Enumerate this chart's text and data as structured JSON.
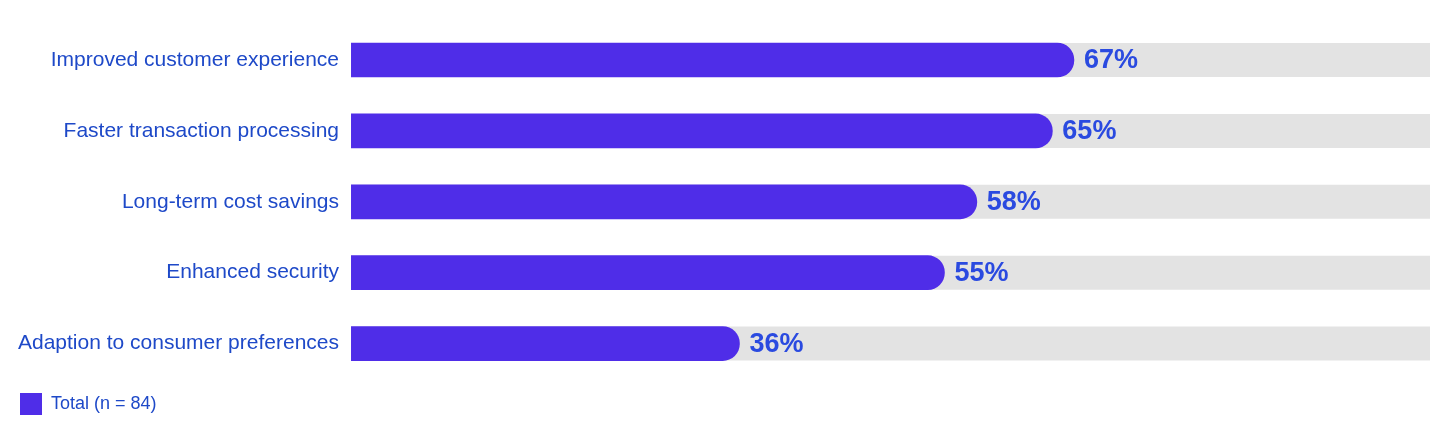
{
  "chart_data": {
    "type": "bar",
    "orientation": "horizontal",
    "categories": [
      "Improved customer experience",
      "Faster transaction processing",
      "Long-term cost savings",
      "Enhanced security",
      "Adaption to consumer preferences"
    ],
    "series": [
      {
        "name": "Total (n = 84)",
        "color": "#4f2de8",
        "values": [
          67,
          65,
          58,
          55,
          36
        ],
        "value_labels": [
          "67%",
          "65%",
          "58%",
          "55%",
          "36%"
        ]
      }
    ],
    "xlim": [
      0,
      100
    ],
    "tick_labels": "y",
    "legend": "bottom"
  }
}
